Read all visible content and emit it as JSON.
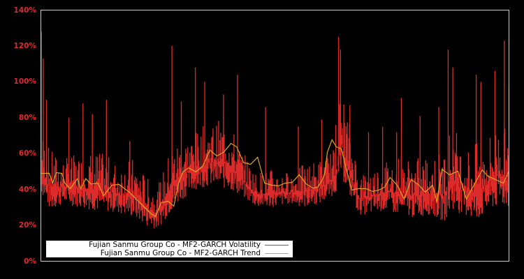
{
  "chart_data": {
    "type": "line",
    "title": "",
    "xlabel": "",
    "ylabel": "",
    "ylim": [
      0,
      140
    ],
    "y_ticks": [
      "0%",
      "20%",
      "40%",
      "60%",
      "80%",
      "100%",
      "120%",
      "140%"
    ],
    "y_tick_values": [
      0,
      20,
      40,
      60,
      80,
      100,
      120,
      140
    ],
    "x_ticks": [],
    "grid": false,
    "legend_position": "lower left",
    "background": "#000000",
    "frame_color": "#cccccc",
    "tick_label_color": "#dd2a2a",
    "series": [
      {
        "name": "Fujian Sanmu Group Co - MF2-GARCH Volatility",
        "color": "#dd2a2a",
        "note": "Daily volatility, spiky; approximate band (low/high envelope) and notable spikes, x normalized 0..1",
        "envelope": {
          "x": [
            0.0,
            0.02,
            0.05,
            0.08,
            0.12,
            0.16,
            0.2,
            0.23,
            0.25,
            0.28,
            0.3,
            0.33,
            0.36,
            0.4,
            0.43,
            0.46,
            0.5,
            0.53,
            0.56,
            0.6,
            0.63,
            0.64,
            0.66,
            0.68,
            0.7,
            0.73,
            0.76,
            0.8,
            0.83,
            0.86,
            0.88,
            0.9,
            0.93,
            0.96,
            0.98,
            1.0
          ],
          "low": [
            38,
            28,
            32,
            30,
            28,
            27,
            24,
            19,
            18,
            28,
            34,
            40,
            42,
            40,
            36,
            30,
            30,
            32,
            30,
            32,
            38,
            48,
            36,
            26,
            26,
            28,
            26,
            24,
            26,
            22,
            28,
            26,
            22,
            28,
            30,
            30
          ],
          "high": [
            75,
            62,
            58,
            60,
            62,
            56,
            58,
            46,
            42,
            66,
            70,
            72,
            78,
            80,
            62,
            50,
            52,
            50,
            54,
            58,
            64,
            98,
            78,
            50,
            52,
            56,
            60,
            58,
            60,
            62,
            80,
            64,
            66,
            72,
            80,
            70
          ]
        },
        "spikes": [
          {
            "x": 0.001,
            "value": 128
          },
          {
            "x": 0.005,
            "value": 113
          },
          {
            "x": 0.012,
            "value": 90
          },
          {
            "x": 0.06,
            "value": 80
          },
          {
            "x": 0.09,
            "value": 88
          },
          {
            "x": 0.11,
            "value": 82
          },
          {
            "x": 0.14,
            "value": 90
          },
          {
            "x": 0.19,
            "value": 67
          },
          {
            "x": 0.28,
            "value": 120
          },
          {
            "x": 0.3,
            "value": 89
          },
          {
            "x": 0.33,
            "value": 108
          },
          {
            "x": 0.35,
            "value": 100
          },
          {
            "x": 0.39,
            "value": 93
          },
          {
            "x": 0.42,
            "value": 104
          },
          {
            "x": 0.48,
            "value": 86
          },
          {
            "x": 0.55,
            "value": 75
          },
          {
            "x": 0.6,
            "value": 79
          },
          {
            "x": 0.63,
            "value": 76
          },
          {
            "x": 0.636,
            "value": 125
          },
          {
            "x": 0.64,
            "value": 118
          },
          {
            "x": 0.66,
            "value": 87
          },
          {
            "x": 0.7,
            "value": 72
          },
          {
            "x": 0.73,
            "value": 75
          },
          {
            "x": 0.76,
            "value": 72
          },
          {
            "x": 0.77,
            "value": 91
          },
          {
            "x": 0.81,
            "value": 81
          },
          {
            "x": 0.85,
            "value": 86
          },
          {
            "x": 0.87,
            "value": 118
          },
          {
            "x": 0.88,
            "value": 108
          },
          {
            "x": 0.93,
            "value": 104
          },
          {
            "x": 0.94,
            "value": 100
          },
          {
            "x": 0.97,
            "value": 106
          },
          {
            "x": 0.99,
            "value": 123
          },
          {
            "x": 1.0,
            "value": 98
          }
        ]
      },
      {
        "name": "Fujian Sanmu Group Co - MF2-GARCH Trend",
        "color": "#d9a520",
        "x": [
          0.0,
          0.018,
          0.025,
          0.033,
          0.045,
          0.051,
          0.063,
          0.078,
          0.085,
          0.096,
          0.107,
          0.122,
          0.134,
          0.152,
          0.167,
          0.189,
          0.204,
          0.219,
          0.234,
          0.245,
          0.257,
          0.272,
          0.284,
          0.294,
          0.304,
          0.316,
          0.331,
          0.346,
          0.361,
          0.376,
          0.391,
          0.406,
          0.418,
          0.433,
          0.448,
          0.463,
          0.478,
          0.493,
          0.507,
          0.522,
          0.537,
          0.552,
          0.567,
          0.581,
          0.591,
          0.599,
          0.606,
          0.612,
          0.622,
          0.631,
          0.642,
          0.652,
          0.664,
          0.679,
          0.694,
          0.709,
          0.722,
          0.734,
          0.746,
          0.761,
          0.776,
          0.791,
          0.806,
          0.821,
          0.837,
          0.846,
          0.857,
          0.873,
          0.891,
          0.909,
          0.925,
          0.943,
          0.955,
          0.988,
          1.0
        ],
        "values": [
          49,
          49,
          43.5,
          49.4,
          49,
          43.5,
          40.5,
          46,
          40.5,
          46,
          43,
          43.5,
          36.5,
          42.4,
          42.8,
          38.5,
          34.6,
          30.7,
          26.8,
          24.9,
          32.7,
          33.4,
          30.7,
          43.5,
          50,
          52,
          49.8,
          53,
          62,
          58.7,
          60.9,
          65.7,
          63.8,
          55,
          54,
          58,
          43.5,
          42.4,
          42,
          43.5,
          44,
          48.2,
          43,
          40.8,
          41.2,
          44.3,
          48.2,
          60.7,
          67.7,
          63.8,
          62.6,
          52,
          39.7,
          40.5,
          40.5,
          38.9,
          39.7,
          41.2,
          46.7,
          42.4,
          34.6,
          45.5,
          42.8,
          38.5,
          42.4,
          33,
          51.3,
          48.2,
          50.2,
          34.6,
          42.4,
          50.9,
          47.4,
          43.5,
          50.2
        ]
      }
    ]
  },
  "legend": {
    "items": [
      {
        "label": "Fujian Sanmu Group Co - MF2-GARCH Volatility",
        "color": "#dd2a2a"
      },
      {
        "label": "Fujian Sanmu Group Co - MF2-GARCH Trend",
        "color": "#d9a520"
      }
    ]
  }
}
